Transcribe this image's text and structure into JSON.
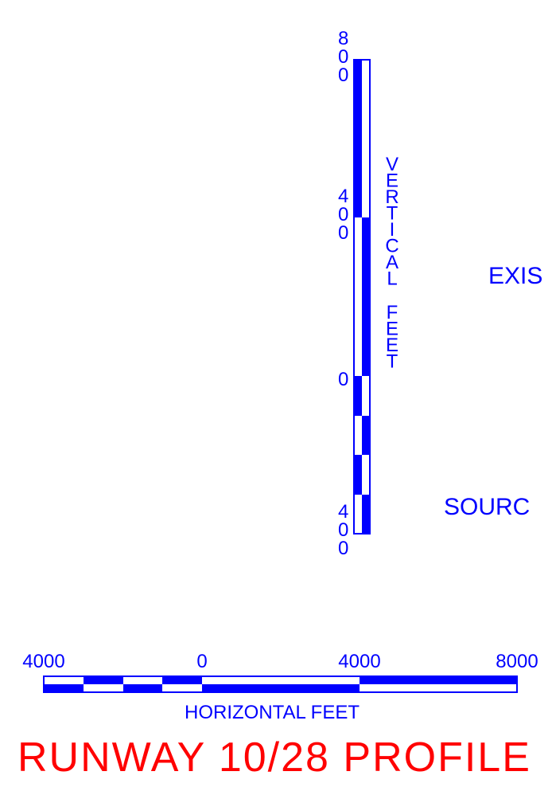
{
  "colors": {
    "scale": "#0000ff",
    "title": "#ff0000",
    "background": "#ffffff"
  },
  "vertical_scale": {
    "axis_label": "VERTICAL FEET",
    "tick_labels": [
      "800",
      "400",
      "0",
      "400"
    ],
    "tick_values_ft": [
      800,
      400,
      0,
      -400
    ]
  },
  "horizontal_scale": {
    "axis_label": "HORIZONTAL FEET",
    "tick_labels": [
      "4000",
      "0",
      "4000",
      "8000"
    ],
    "tick_values_ft": [
      -4000,
      0,
      4000,
      8000
    ]
  },
  "partial_labels": {
    "existing": "EXIS",
    "source": "SOURC"
  },
  "title": "RUNWAY 10/28 PROFILE"
}
